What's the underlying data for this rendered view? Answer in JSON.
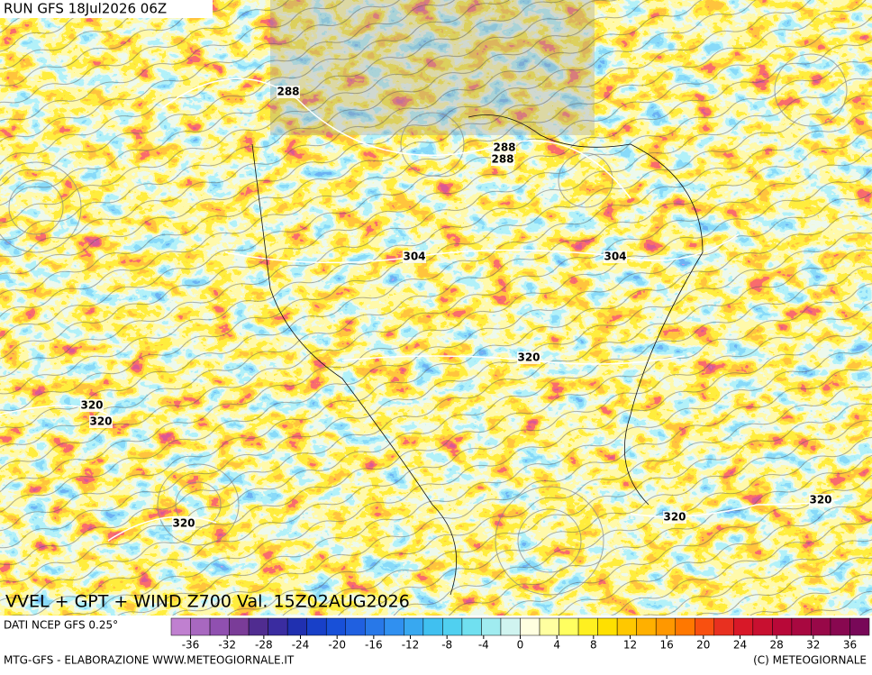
{
  "header": {
    "run": "RUN GFS 18Jul2026 06Z"
  },
  "map": {
    "title": "VVEL + GPT + WIND Z700 Val. 15Z02AUG2026",
    "contour_labels": [
      "288",
      "288",
      "288",
      "304",
      "304",
      "320",
      "320",
      "320",
      "320",
      "320",
      "320"
    ]
  },
  "legend": {
    "source": "DATI NCEP GFS 0.25°",
    "colors": [
      "#c080d0",
      "#a868c0",
      "#9050b0",
      "#7a3c98",
      "#502c90",
      "#3a2ca0",
      "#2030b0",
      "#1840c8",
      "#1850d8",
      "#2060e0",
      "#2878e8",
      "#3090f0",
      "#38a8f0",
      "#40c0f0",
      "#50d0f0",
      "#70e0f0",
      "#a0ecf0",
      "#d0f4f0",
      "#ffffe0",
      "#ffffa0",
      "#ffff60",
      "#fff020",
      "#ffe000",
      "#ffc800",
      "#ffb000",
      "#ff9800",
      "#ff7800",
      "#f85010",
      "#e83020",
      "#d81828",
      "#c81030",
      "#b80838",
      "#a80840",
      "#980848",
      "#880850",
      "#780858"
    ],
    "ticks": [
      -36,
      -32,
      -28,
      -24,
      -20,
      -16,
      -12,
      -8,
      -4,
      0,
      4,
      8,
      12,
      16,
      20,
      24,
      28,
      32,
      36
    ]
  },
  "footer": {
    "left": "MTG-GFS - ELABORAZIONE WWW.METEOGIORNALE.IT",
    "right": "(C) METEOGIORNALE"
  }
}
